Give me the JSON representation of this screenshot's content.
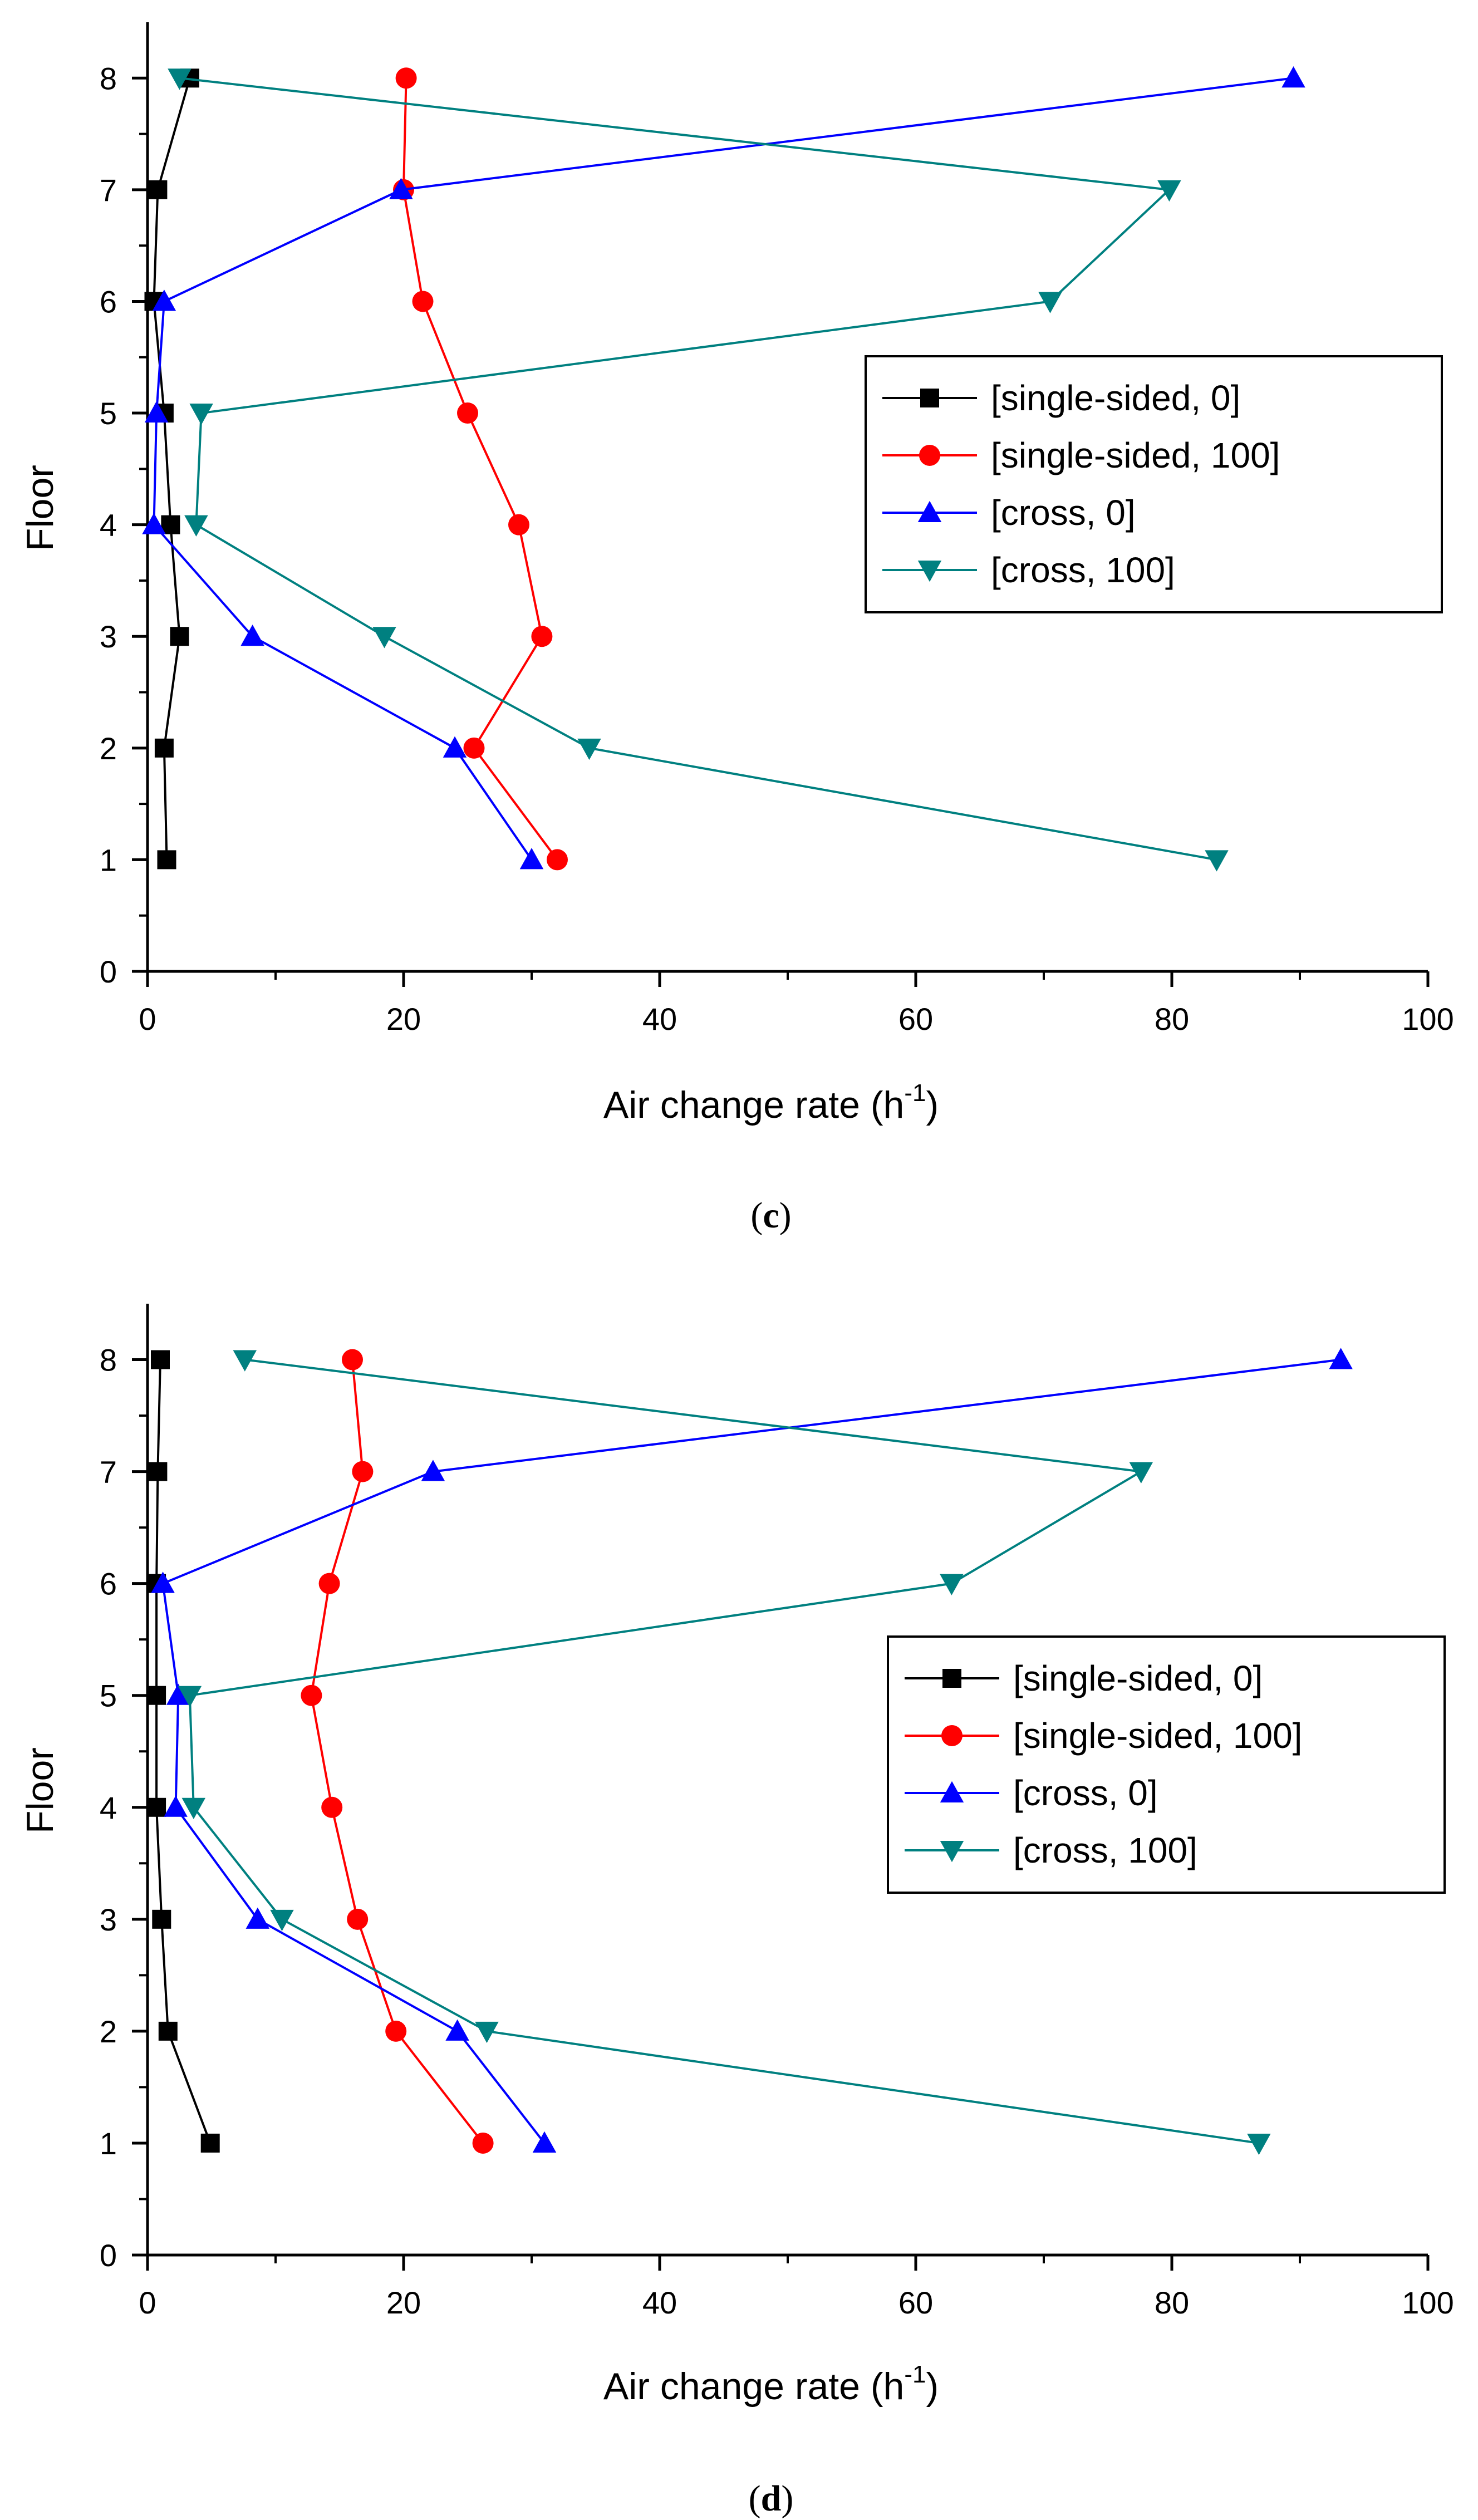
{
  "chart_data": [
    {
      "type": "line",
      "panel_label": "c",
      "xlabel": "Air change rate (h",
      "xlabel_sup": "-1",
      "xlabel_close": ")",
      "ylabel": "Floor",
      "xlim": [
        0,
        100
      ],
      "ylim": [
        0,
        8.5
      ],
      "xticks": [
        0,
        20,
        40,
        60,
        80,
        100
      ],
      "yticks": [
        0,
        1,
        2,
        3,
        4,
        5,
        6,
        7,
        8
      ],
      "legend_position": "center-right",
      "series": [
        {
          "name": "[single-sided, 0]",
          "color": "#000000",
          "marker": "square",
          "x": [
            1.5,
            1.3,
            2.5,
            1.8,
            1.3,
            0.5,
            0.8,
            3.3
          ],
          "y": [
            1,
            2,
            3,
            4,
            5,
            6,
            7,
            8
          ]
        },
        {
          "name": "[single-sided, 100]",
          "color": "#ff0000",
          "marker": "circle",
          "x": [
            32,
            25.5,
            30.8,
            29,
            25,
            21.5,
            20,
            20.2
          ],
          "y": [
            1,
            2,
            3,
            4,
            5,
            6,
            7,
            8
          ]
        },
        {
          "name": "[cross, 0]",
          "color": "#0000ff",
          "marker": "triangle-up",
          "x": [
            30,
            24,
            8.2,
            0.5,
            0.7,
            1.3,
            19.8,
            89.5
          ],
          "y": [
            1,
            2,
            3,
            4,
            5,
            6,
            7,
            8
          ]
        },
        {
          "name": "[cross, 100]",
          "color": "#008080",
          "marker": "triangle-down",
          "x": [
            83.5,
            34.5,
            18.5,
            3.8,
            4.2,
            70.5,
            79.8,
            2.5
          ],
          "y": [
            1,
            2,
            3,
            4,
            5,
            6,
            7,
            8
          ]
        }
      ]
    },
    {
      "type": "line",
      "panel_label": "d",
      "xlabel": "Air change rate (h",
      "xlabel_sup": "-1",
      "xlabel_close": ")",
      "ylabel": "Floor",
      "xlim": [
        0,
        100
      ],
      "ylim": [
        0,
        8.5
      ],
      "xticks": [
        0,
        20,
        40,
        60,
        80,
        100
      ],
      "yticks": [
        0,
        1,
        2,
        3,
        4,
        5,
        6,
        7,
        8
      ],
      "legend_position": "center-right",
      "series": [
        {
          "name": "[single-sided, 0]",
          "color": "#000000",
          "marker": "square",
          "x": [
            4.9,
            1.6,
            1.1,
            0.7,
            0.7,
            0.7,
            0.8,
            1.0
          ],
          "y": [
            1,
            2,
            3,
            4,
            5,
            6,
            7,
            8
          ]
        },
        {
          "name": "[single-sided, 100]",
          "color": "#ff0000",
          "marker": "circle",
          "x": [
            26.2,
            19.4,
            16.4,
            14.4,
            12.8,
            14.2,
            16.8,
            16.0
          ],
          "y": [
            1,
            2,
            3,
            4,
            5,
            6,
            7,
            8
          ]
        },
        {
          "name": "[cross, 0]",
          "color": "#0000ff",
          "marker": "triangle-up",
          "x": [
            31,
            24.2,
            8.6,
            2.2,
            2.4,
            1.2,
            22.3,
            93.2
          ],
          "y": [
            1,
            2,
            3,
            4,
            5,
            6,
            7,
            8
          ]
        },
        {
          "name": "[cross, 100]",
          "color": "#008080",
          "marker": "triangle-down",
          "x": [
            86.8,
            26.5,
            10.5,
            3.6,
            3.3,
            62.8,
            77.6,
            7.6
          ],
          "y": [
            1,
            2,
            3,
            4,
            5,
            6,
            7,
            8
          ]
        }
      ]
    }
  ]
}
